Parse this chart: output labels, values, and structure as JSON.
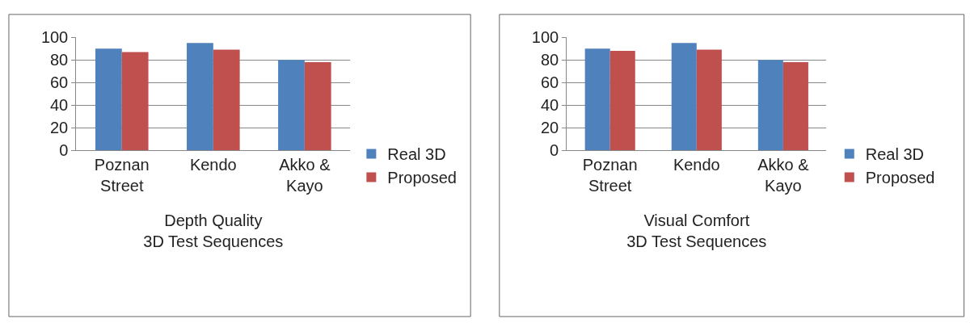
{
  "chart_data": [
    {
      "type": "bar",
      "xlabel": "Depth Quality\n3D Test Sequences",
      "categories": [
        "Poznan Street",
        "Kendo",
        "Akko & Kayo"
      ],
      "series": [
        {
          "name": "Real 3D",
          "color": "#4f81bd",
          "values": [
            90,
            95,
            80
          ]
        },
        {
          "name": "Proposed",
          "color": "#c0504d",
          "values": [
            87,
            89,
            78
          ]
        }
      ],
      "ylim": [
        0,
        100
      ],
      "yticks": [
        0,
        20,
        40,
        60,
        80,
        100
      ],
      "grid": "y",
      "legend": "right"
    },
    {
      "type": "bar",
      "xlabel": "Visual Comfort\n3D Test Sequences",
      "categories": [
        "Poznan Street",
        "Kendo",
        "Akko & Kayo"
      ],
      "series": [
        {
          "name": "Real 3D",
          "color": "#4f81bd",
          "values": [
            90,
            95,
            80
          ]
        },
        {
          "name": "Proposed",
          "color": "#c0504d",
          "values": [
            88,
            89,
            78
          ]
        }
      ],
      "ylim": [
        0,
        100
      ],
      "yticks": [
        0,
        20,
        40,
        60,
        80,
        100
      ],
      "grid": "y",
      "legend": "right"
    }
  ]
}
